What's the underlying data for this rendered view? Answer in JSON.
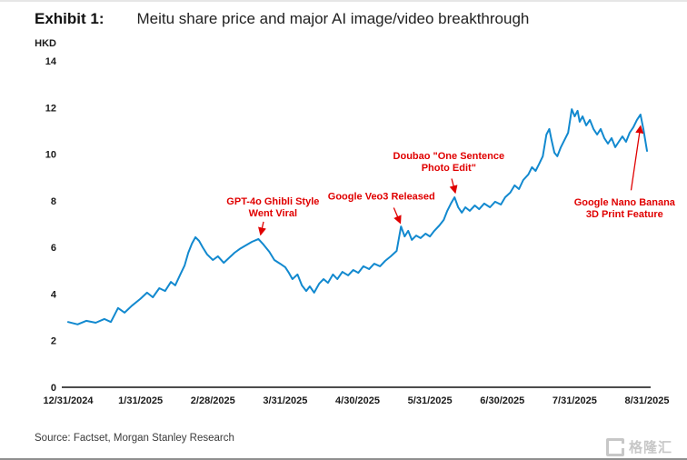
{
  "page": {
    "exhibit_label": "Exhibit 1:",
    "title": "Meitu share price and major AI image/video breakthrough",
    "source": "Source: Factset, Morgan Stanley Research",
    "watermark_text": "格隆汇"
  },
  "chart_data": {
    "type": "line",
    "title": "Meitu share price and major AI image/video breakthrough",
    "ylabel": "HKD",
    "ylim": [
      0,
      14
    ],
    "yticks": [
      0,
      2,
      4,
      6,
      8,
      10,
      12,
      14
    ],
    "xlim": [
      0,
      8
    ],
    "x_unit": "months since 12/31/2024",
    "xtick_labels": [
      "12/31/2024",
      "1/31/2025",
      "2/28/2025",
      "3/31/2025",
      "4/30/2025",
      "5/31/2025",
      "6/30/2025",
      "7/31/2025",
      "8/31/2025"
    ],
    "grid": false,
    "legend": "none",
    "line_color": "#1289cf",
    "annotation_color": "#e00000",
    "series": [
      {
        "name": "Meitu share price (HKD)",
        "x": [
          0.0,
          0.13,
          0.25,
          0.38,
          0.5,
          0.59,
          0.69,
          0.78,
          0.88,
          1.0,
          1.09,
          1.17,
          1.26,
          1.34,
          1.42,
          1.48,
          1.55,
          1.61,
          1.66,
          1.71,
          1.76,
          1.81,
          1.86,
          1.92,
          2.0,
          2.07,
          2.15,
          2.22,
          2.3,
          2.37,
          2.45,
          2.54,
          2.63,
          2.7,
          2.78,
          2.85,
          2.93,
          3.0,
          3.05,
          3.1,
          3.17,
          3.23,
          3.29,
          3.34,
          3.4,
          3.47,
          3.53,
          3.59,
          3.66,
          3.72,
          3.79,
          3.87,
          3.94,
          4.01,
          4.08,
          4.16,
          4.23,
          4.31,
          4.38,
          4.46,
          4.54,
          4.6,
          4.65,
          4.7,
          4.75,
          4.81,
          4.87,
          4.94,
          5.0,
          5.06,
          5.13,
          5.19,
          5.24,
          5.29,
          5.34,
          5.39,
          5.44,
          5.49,
          5.55,
          5.62,
          5.68,
          5.75,
          5.83,
          5.9,
          5.98,
          6.04,
          6.11,
          6.17,
          6.23,
          6.29,
          6.36,
          6.41,
          6.46,
          6.51,
          6.56,
          6.61,
          6.65,
          6.68,
          6.72,
          6.76,
          6.81,
          6.86,
          6.91,
          6.96,
          7.0,
          7.04,
          7.07,
          7.11,
          7.16,
          7.21,
          7.26,
          7.31,
          7.36,
          7.41,
          7.46,
          7.51,
          7.56,
          7.61,
          7.66,
          7.71,
          7.76,
          7.81,
          7.86,
          7.91,
          7.95,
          8.0
        ],
        "y": [
          2.8,
          2.7,
          2.85,
          2.77,
          2.93,
          2.8,
          3.4,
          3.2,
          3.5,
          3.8,
          4.06,
          3.86,
          4.25,
          4.13,
          4.52,
          4.37,
          4.84,
          5.23,
          5.77,
          6.16,
          6.44,
          6.28,
          6.0,
          5.7,
          5.46,
          5.62,
          5.34,
          5.54,
          5.77,
          5.93,
          6.08,
          6.24,
          6.36,
          6.12,
          5.81,
          5.46,
          5.3,
          5.15,
          4.91,
          4.64,
          4.84,
          4.37,
          4.13,
          4.33,
          4.06,
          4.45,
          4.64,
          4.48,
          4.84,
          4.64,
          4.95,
          4.8,
          5.03,
          4.91,
          5.19,
          5.07,
          5.3,
          5.19,
          5.42,
          5.62,
          5.85,
          6.9,
          6.47,
          6.71,
          6.32,
          6.51,
          6.4,
          6.59,
          6.47,
          6.71,
          6.94,
          7.18,
          7.57,
          7.88,
          8.15,
          7.72,
          7.49,
          7.72,
          7.57,
          7.8,
          7.64,
          7.88,
          7.72,
          7.96,
          7.84,
          8.15,
          8.35,
          8.66,
          8.5,
          8.89,
          9.13,
          9.44,
          9.28,
          9.59,
          9.91,
          10.84,
          11.08,
          10.61,
          10.06,
          9.91,
          10.3,
          10.61,
          10.92,
          11.93,
          11.62,
          11.86,
          11.39,
          11.62,
          11.23,
          11.47,
          11.08,
          10.84,
          11.08,
          10.69,
          10.45,
          10.69,
          10.3,
          10.53,
          10.76,
          10.53,
          10.92,
          11.15,
          11.47,
          11.7,
          11.08,
          10.14
        ]
      }
    ],
    "annotations": [
      {
        "lines": [
          "GPT-4o Ghibli Style",
          "Went Viral"
        ],
        "label_x": 2.83,
        "label_y": 7.75,
        "arrow_from": [
          2.7,
          7.1
        ],
        "arrow_to": [
          2.66,
          6.55
        ]
      },
      {
        "lines": [
          "Google Veo3 Released"
        ],
        "label_x": 4.33,
        "label_y": 8.2,
        "arrow_from": [
          4.5,
          7.7
        ],
        "arrow_to": [
          4.59,
          7.05
        ]
      },
      {
        "lines": [
          "Doubao \"One Sentence",
          "Photo Edit\""
        ],
        "label_x": 5.26,
        "label_y": 9.7,
        "arrow_from": [
          5.3,
          8.95
        ],
        "arrow_to": [
          5.35,
          8.35
        ]
      },
      {
        "lines": [
          "Google Nano Banana",
          "3D Print Feature"
        ],
        "label_x": 7.69,
        "label_y": 7.7,
        "arrow_from": [
          7.78,
          8.45
        ],
        "arrow_to": [
          7.91,
          11.2
        ]
      }
    ]
  }
}
